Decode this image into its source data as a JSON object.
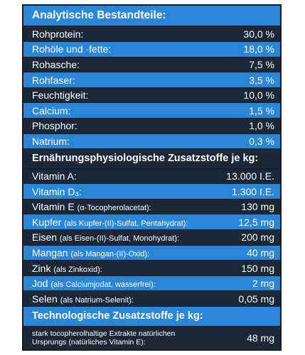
{
  "sections": [
    {
      "title": "Analytische Bestandteile:",
      "rows": [
        {
          "label": "Rohprotein:",
          "value": "30,0 %"
        },
        {
          "label": "Rohöle und -fette:",
          "value": "18,0 %"
        },
        {
          "label": "Rohasche:",
          "value": "7,5 %"
        },
        {
          "label": "Rohfaser:",
          "value": "3,5 %"
        },
        {
          "label": "Feuchtigkeit:",
          "value": "10,0 %"
        },
        {
          "label": "Calcium:",
          "value": "1,5 %"
        },
        {
          "label": "Phosphor:",
          "value": "1,0 %"
        },
        {
          "label": "Natrium:",
          "value": "0,3 %"
        }
      ]
    },
    {
      "title": "Ernährungsphysiologische Zusatzstoffe je kg:",
      "rows": [
        {
          "label": "Vitamin A:",
          "value": "13.000 I.E."
        },
        {
          "label": "Vitamin D₃:",
          "value": "1.300 I.E."
        },
        {
          "label": "Vitamin E",
          "note": "(α-Tocopherolacetat):",
          "value": "130 mg"
        },
        {
          "label": "Kupfer",
          "note": "(als Kupfer-(II)-Sulfat, Pentahydrat):",
          "value": "12,5 mg"
        },
        {
          "label": "Eisen",
          "note": "(als Eisen-(II)-Sulfat, Monohydrat):",
          "value": "200 mg"
        },
        {
          "label": "Mangan",
          "note": "(als Mangan-(II)-Oxid):",
          "value": "40 mg"
        },
        {
          "label": "Zink",
          "note": "(als Zinkoxid):",
          "value": "150 mg"
        },
        {
          "label": "Jod",
          "note": "(als Calciumjodat, wasserfrei):",
          "value": "2 mg"
        },
        {
          "label": "Selen",
          "note": "(als Natrium-Selenit):",
          "value": "0,05 mg"
        }
      ]
    },
    {
      "title": "Technologische Zusatzstoffe je kg:",
      "rows": [
        {
          "label": "stark tocopherolhaltige Extrakte natürlichen Ursprungs (natürliches Vitamin E):",
          "value": "48 mg"
        }
      ]
    }
  ]
}
